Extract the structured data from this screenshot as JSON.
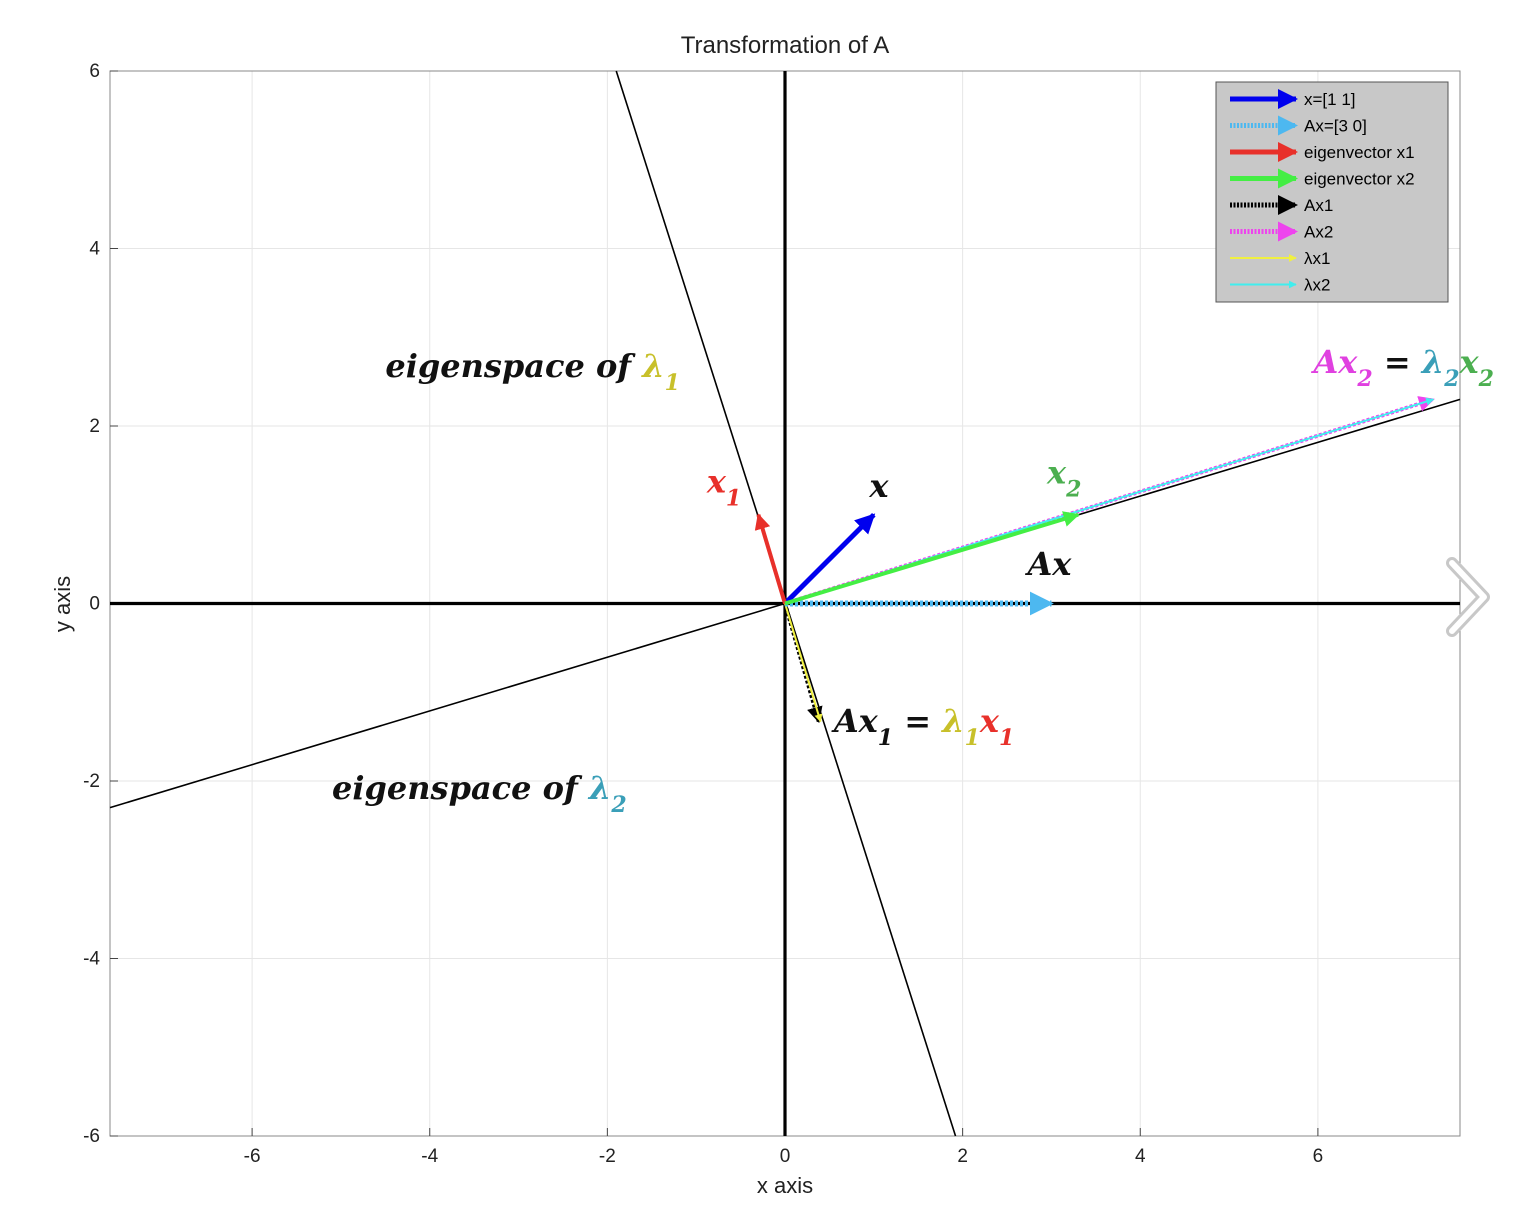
{
  "chart_data": {
    "type": "line",
    "title": "Transformation of A",
    "xlabel": "x axis",
    "ylabel": "y axis",
    "xlim": [
      -7.6,
      7.6
    ],
    "ylim": [
      -6,
      6
    ],
    "x_ticks": [
      -6,
      -4,
      -2,
      0,
      2,
      4,
      6
    ],
    "y_ticks": [
      -6,
      -4,
      -2,
      0,
      2,
      4,
      6
    ],
    "grid": true,
    "legend_position": "top-right",
    "legend": [
      {
        "label": "x=[1 1]",
        "color": "#0000ee",
        "style": "solid"
      },
      {
        "label": "Ax=[3 0]",
        "color": "#4db8f0",
        "style": "dotted"
      },
      {
        "label": "eigenvector x1",
        "color": "#e8302a",
        "style": "solid"
      },
      {
        "label": "eigenvector x2",
        "color": "#44ee44",
        "style": "solid"
      },
      {
        "label": "Ax1",
        "color": "#000000",
        "style": "dotted"
      },
      {
        "label": "Ax2",
        "color": "#ee44ee",
        "style": "dotted"
      },
      {
        "label": "λx1",
        "color": "#f0f040",
        "style": "solid"
      },
      {
        "label": "λx2",
        "color": "#40eeee",
        "style": "solid"
      }
    ],
    "eigenspace_lines": [
      {
        "from": [
          -1.9,
          6.0
        ],
        "to": [
          1.92,
          -6.0
        ]
      },
      {
        "from": [
          -7.6,
          -2.3
        ],
        "to": [
          7.6,
          2.3
        ]
      }
    ],
    "vectors": [
      {
        "name": "Ax2",
        "from": [
          0,
          0
        ],
        "to": [
          7.3,
          2.3
        ],
        "color": "#ee44ee",
        "style": "dotted",
        "width": 4
      },
      {
        "name": "λx2",
        "from": [
          0,
          0
        ],
        "to": [
          7.3,
          2.3
        ],
        "color": "#40eeee",
        "style": "solid",
        "width": 2
      },
      {
        "name": "Ax1",
        "from": [
          0,
          0
        ],
        "to": [
          0.38,
          -1.33
        ],
        "color": "#000000",
        "style": "dotted",
        "width": 4
      },
      {
        "name": "λx1",
        "from": [
          0,
          0
        ],
        "to": [
          0.4,
          -1.33
        ],
        "color": "#f0f040",
        "style": "solid",
        "width": 2
      },
      {
        "name": "Ax=[3 0]",
        "from": [
          0,
          0
        ],
        "to": [
          3.0,
          0.0
        ],
        "color": "#4db8f0",
        "style": "dotted",
        "width": 6
      },
      {
        "name": "x=[1 1]",
        "from": [
          0,
          0
        ],
        "to": [
          1.0,
          1.0
        ],
        "color": "#0000ee",
        "style": "solid",
        "width": 5
      },
      {
        "name": "eigenvector x1",
        "from": [
          0,
          0
        ],
        "to": [
          -0.3,
          1.0
        ],
        "color": "#e8302a",
        "style": "solid",
        "width": 4
      },
      {
        "name": "eigenvector x2",
        "from": [
          0,
          0
        ],
        "to": [
          3.3,
          1.0
        ],
        "color": "#44ee44",
        "style": "solid",
        "width": 4
      }
    ],
    "annotations": [
      {
        "id": "eig1",
        "segments": [
          {
            "t": "eigenspace of ",
            "c": "#111111"
          },
          {
            "t": "λ",
            "c": "#c8c02a"
          },
          {
            "t": "1",
            "c": "#c8c02a",
            "sub": true
          }
        ],
        "at": [
          -4.5,
          2.55
        ],
        "size": 32
      },
      {
        "id": "eig2",
        "segments": [
          {
            "t": "eigenspace of ",
            "c": "#111111"
          },
          {
            "t": "λ",
            "c": "#3a9fb8"
          },
          {
            "t": "2",
            "c": "#3a9fb8",
            "sub": true
          }
        ],
        "at": [
          -5.1,
          -2.2
        ],
        "size": 32
      },
      {
        "id": "x1",
        "segments": [
          {
            "t": "x",
            "c": "#e8302a"
          },
          {
            "t": "1",
            "c": "#e8302a",
            "sub": true
          }
        ],
        "at": [
          -0.88,
          1.25
        ],
        "size": 32
      },
      {
        "id": "x",
        "segments": [
          {
            "t": "x",
            "c": "#111111"
          }
        ],
        "at": [
          0.95,
          1.2
        ],
        "size": 32
      },
      {
        "id": "x2",
        "segments": [
          {
            "t": "x",
            "c": "#4caf50"
          },
          {
            "t": "2",
            "c": "#4caf50",
            "sub": true
          }
        ],
        "at": [
          2.95,
          1.35
        ],
        "size": 32
      },
      {
        "id": "Ax",
        "segments": [
          {
            "t": "Ax",
            "c": "#111111"
          }
        ],
        "at": [
          2.73,
          0.32
        ],
        "size": 32
      },
      {
        "id": "Ax1eq",
        "segments": [
          {
            "t": "Ax",
            "c": "#111111"
          },
          {
            "t": "1",
            "c": "#111111",
            "sub": true
          },
          {
            "t": " = ",
            "c": "#111111"
          },
          {
            "t": "λ",
            "c": "#c8c02a"
          },
          {
            "t": "1",
            "c": "#c8c02a",
            "sub": true
          },
          {
            "t": "x",
            "c": "#e8302a"
          },
          {
            "t": "1",
            "c": "#e8302a",
            "sub": true
          }
        ],
        "at": [
          0.55,
          -1.45
        ],
        "size": 32
      },
      {
        "id": "Ax2eq",
        "segments": [
          {
            "t": "Ax",
            "c": "#e040e0"
          },
          {
            "t": "2",
            "c": "#e040e0",
            "sub": true
          },
          {
            "t": " = ",
            "c": "#111111"
          },
          {
            "t": "λ",
            "c": "#3a9fb8"
          },
          {
            "t": "2",
            "c": "#3a9fb8",
            "sub": true
          },
          {
            "t": "x",
            "c": "#4caf50"
          },
          {
            "t": "2",
            "c": "#4caf50",
            "sub": true
          }
        ],
        "at": [
          5.95,
          2.6
        ],
        "size": 32
      }
    ]
  }
}
